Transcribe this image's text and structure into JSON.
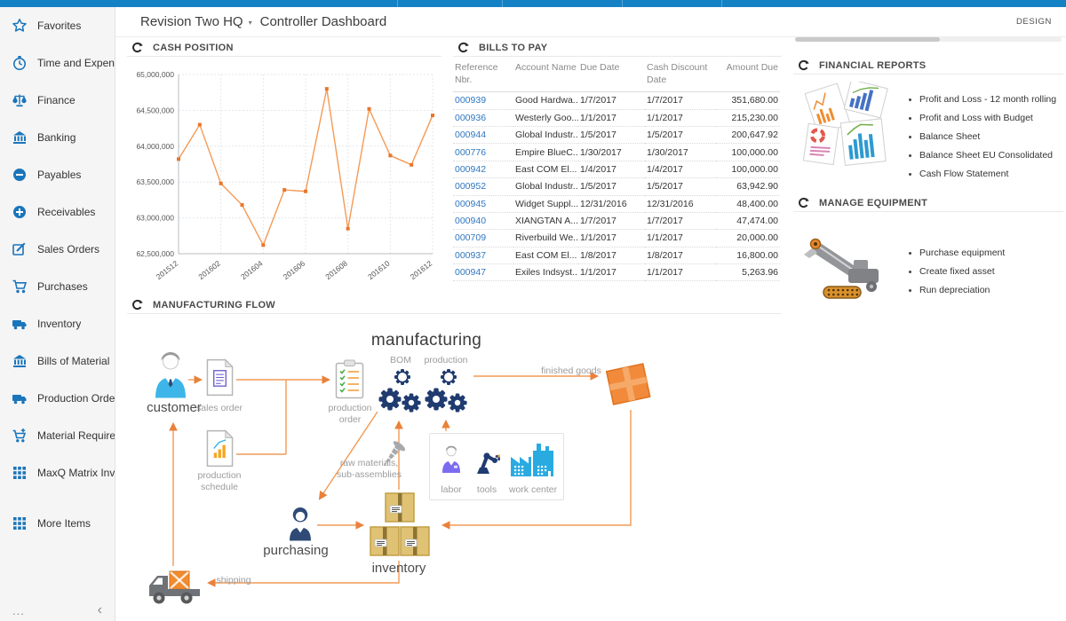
{
  "app": {
    "design_label": "DESIGN",
    "top_bar_color": "#1581c5"
  },
  "header": {
    "company": "Revision Two HQ",
    "caret": "▾",
    "dashboard_title": "Controller Dashboard"
  },
  "sidebar": {
    "items": [
      {
        "label": "Favorites",
        "icon": "star"
      },
      {
        "label": "Time and Expenses",
        "icon": "clock"
      },
      {
        "label": "Finance",
        "icon": "scales"
      },
      {
        "label": "Banking",
        "icon": "bank"
      },
      {
        "label": "Payables",
        "icon": "minus-circle"
      },
      {
        "label": "Receivables",
        "icon": "plus-circle"
      },
      {
        "label": "Sales Orders",
        "icon": "edit"
      },
      {
        "label": "Purchases",
        "icon": "cart"
      },
      {
        "label": "Inventory",
        "icon": "truck"
      },
      {
        "label": "Bills of Material",
        "icon": "bank"
      },
      {
        "label": "Production Orders",
        "icon": "truck"
      },
      {
        "label": "Material Requirem...",
        "icon": "cart-plus"
      },
      {
        "label": "MaxQ Matrix Invent...",
        "icon": "grid"
      },
      {
        "label": "More Items",
        "icon": "grid"
      }
    ],
    "footer": {
      "more": "...",
      "collapse": "‹"
    }
  },
  "panels": {
    "cash_position": {
      "title": "CASH POSITION"
    },
    "bills_to_pay": {
      "title": "BILLS TO PAY",
      "columns": [
        "Reference Nbr.",
        "Account Name",
        "Due Date",
        "Cash Discount Date",
        "Amount Due"
      ],
      "rows": [
        {
          "ref": "000939",
          "account": "Good Hardwa...",
          "due": "1/7/2017",
          "discount": "1/7/2017",
          "amount": "351,680.00"
        },
        {
          "ref": "000936",
          "account": "Westerly Goo...",
          "due": "1/1/2017",
          "discount": "1/1/2017",
          "amount": "215,230.00"
        },
        {
          "ref": "000944",
          "account": "Global Industr...",
          "due": "1/5/2017",
          "discount": "1/5/2017",
          "amount": "200,647.92"
        },
        {
          "ref": "000776",
          "account": "Empire BlueC...",
          "due": "1/30/2017",
          "discount": "1/30/2017",
          "amount": "100,000.00"
        },
        {
          "ref": "000942",
          "account": "East COM El...",
          "due": "1/4/2017",
          "discount": "1/4/2017",
          "amount": "100,000.00"
        },
        {
          "ref": "000952",
          "account": "Global Industr...",
          "due": "1/5/2017",
          "discount": "1/5/2017",
          "amount": "63,942.90"
        },
        {
          "ref": "000945",
          "account": "Widget Suppl...",
          "due": "12/31/2016",
          "discount": "12/31/2016",
          "amount": "48,400.00"
        },
        {
          "ref": "000940",
          "account": "XIANGTAN A...",
          "due": "1/7/2017",
          "discount": "1/7/2017",
          "amount": "47,474.00"
        },
        {
          "ref": "000709",
          "account": "Riverbuild We...",
          "due": "1/1/2017",
          "discount": "1/1/2017",
          "amount": "20,000.00"
        },
        {
          "ref": "000937",
          "account": "East COM El...",
          "due": "1/8/2017",
          "discount": "1/8/2017",
          "amount": "16,800.00"
        },
        {
          "ref": "000947",
          "account": "Exiles Indsyst...",
          "due": "1/1/2017",
          "discount": "1/1/2017",
          "amount": "5,263.96"
        }
      ]
    },
    "financial_reports": {
      "title": "FINANCIAL REPORTS",
      "image": "reports-collage",
      "links": [
        "Profit and Loss - 12 month rolling",
        "Profit and Loss with Budget",
        "Balance Sheet",
        "Balance Sheet EU Consolidated",
        "Cash Flow Statement"
      ]
    },
    "manage_equipment": {
      "title": "MANAGE EQUIPMENT",
      "image": "crane-equipment",
      "links": [
        "Purchase equipment",
        "Create fixed asset",
        "Run depreciation"
      ]
    },
    "manufacturing_flow": {
      "title": "MANUFACTURING FLOW",
      "labels": {
        "customer": "customer",
        "sales_order": "sales order",
        "production_schedule": "production schedule",
        "production_order": "production order",
        "manufacturing": "manufacturing",
        "bom": "BOM",
        "production": "production",
        "finished_goods": "finished goods",
        "raw_materials": "raw materials, sub-assemblies",
        "labor": "labor",
        "tools": "tools",
        "work_center": "work center",
        "purchasing": "purchasing",
        "inventory": "inventory",
        "shipping": "shipping"
      }
    }
  },
  "chart_data": {
    "type": "line",
    "title": "CASH POSITION",
    "xlabel": "",
    "ylabel": "",
    "x": [
      "201512",
      "201601",
      "201602",
      "201603",
      "201604",
      "201605",
      "201606",
      "201607",
      "201608",
      "201609",
      "201610",
      "201611",
      "201612"
    ],
    "values": [
      63820000,
      64300000,
      63480000,
      63180000,
      62620000,
      63390000,
      63370000,
      64800000,
      62850000,
      64520000,
      63870000,
      63740000,
      64430000
    ],
    "ylim": [
      62500000,
      65000000
    ],
    "ytick_step": 500000,
    "x_label_every": 2,
    "grid": true,
    "legend": "none",
    "line_color": "#f59a56",
    "marker_color": "#e8762c"
  }
}
